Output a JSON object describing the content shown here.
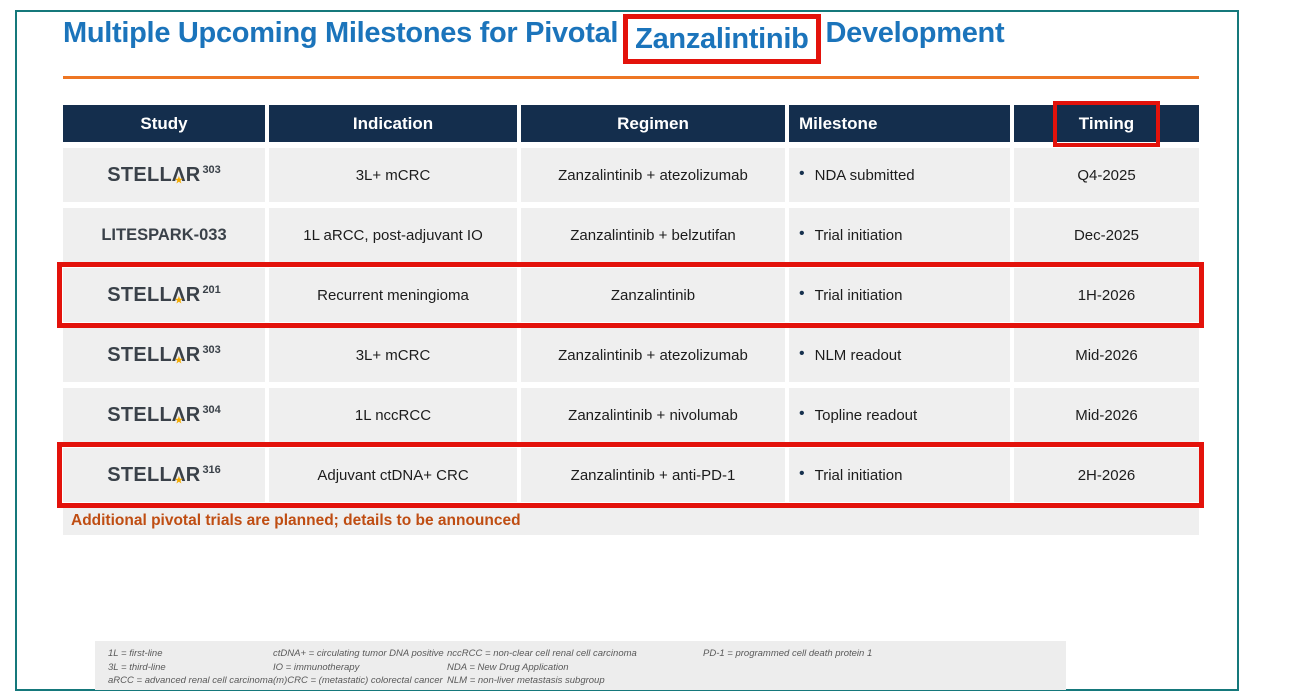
{
  "title": {
    "pre": "Multiple Upcoming Milestones for Pivotal",
    "highlight": "Zanzalintinib",
    "post": "Development"
  },
  "table": {
    "headers": [
      "Study",
      "Indication",
      "Regimen",
      "Milestone",
      "Timing"
    ],
    "rows": [
      {
        "study_pre": "STELL",
        "study_post": "R",
        "study_num": "303",
        "indication": "3L+ mCRC",
        "regimen": "Zanzalintinib + atezolizumab",
        "milestone": "NDA submitted",
        "timing": "Q4-2025",
        "highlighted": false
      },
      {
        "study_label": "LITESPARK-033",
        "indication": "1L aRCC, post-adjuvant IO",
        "regimen": "Zanzalintinib + belzutifan",
        "milestone": "Trial initiation",
        "timing": "Dec-2025",
        "highlighted": false
      },
      {
        "study_pre": "STELL",
        "study_post": "R",
        "study_num": "201",
        "indication": "Recurrent meningioma",
        "regimen": "Zanzalintinib",
        "milestone": "Trial initiation",
        "timing": "1H-2026",
        "highlighted": true
      },
      {
        "study_pre": "STELL",
        "study_post": "R",
        "study_num": "303",
        "indication": "3L+ mCRC",
        "regimen": "Zanzalintinib + atezolizumab",
        "milestone": "NLM readout",
        "timing": "Mid-2026",
        "highlighted": false
      },
      {
        "study_pre": "STELL",
        "study_post": "R",
        "study_num": "304",
        "indication": "1L nccRCC",
        "regimen": "Zanzalintinib + nivolumab",
        "milestone": "Topline readout",
        "timing": "Mid-2026",
        "highlighted": false
      },
      {
        "study_pre": "STELL",
        "study_post": "R",
        "study_num": "316",
        "indication": "Adjuvant ctDNA+ CRC",
        "regimen": "Zanzalintinib + anti-PD-1",
        "milestone": "Trial initiation",
        "timing": "2H-2026",
        "highlighted": true
      }
    ]
  },
  "note": "Additional pivotal trials are planned; details to be announced",
  "footnotes": {
    "col1": [
      "1L = first-line",
      "3L = third-line",
      "aRCC = advanced renal cell carcinoma"
    ],
    "col2": [
      "ctDNA+ = circulating tumor DNA positive",
      "IO = immunotherapy",
      "(m)CRC = (metastatic) colorectal cancer"
    ],
    "col3": [
      "nccRCC = non-clear cell renal cell carcinoma",
      "NDA = New Drug Application",
      "NLM = non-liver metastasis subgroup"
    ],
    "col4": [
      "PD-1 = programmed cell death protein 1"
    ]
  },
  "annotations": {
    "red_highlight_boxes": [
      "title word: Zanzalintinib",
      "column header: Timing",
      "row: STELLAR 201",
      "row: STELLAR 316"
    ]
  },
  "colors": {
    "accent_blue": "#1B74BB",
    "orange_rule": "#EE7623",
    "header_navy": "#142E4D",
    "row_gray": "#EFEFEF",
    "highlight_red": "#E3120B",
    "teal_border": "#15787B",
    "note_rust": "#BF4D12",
    "star_gold": "#F2A900"
  }
}
